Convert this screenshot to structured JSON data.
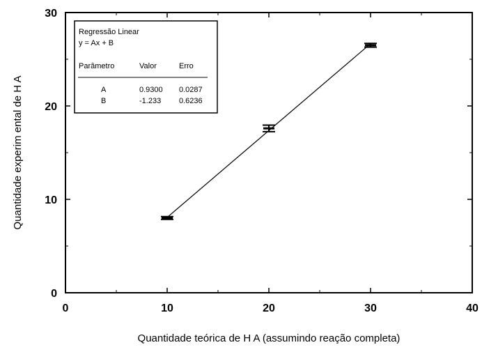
{
  "chart_data": {
    "type": "scatter",
    "xlabel": "Quantidade teórica de H A (assumindo reação completa)",
    "ylabel": "Quantidade experim ental de H A",
    "xlim": [
      0,
      40
    ],
    "ylim": [
      0,
      30
    ],
    "x_ticks": [
      0,
      10,
      20,
      30,
      40
    ],
    "y_ticks": [
      0,
      10,
      20,
      30
    ],
    "x_tick_labels": [
      "0",
      "10",
      "20",
      "30",
      "40"
    ],
    "y_tick_labels": [
      "0",
      "10",
      "20",
      "30"
    ],
    "grid": false,
    "series": [
      {
        "x": [
          10,
          20,
          30
        ],
        "y": [
          8.0,
          17.6,
          26.5
        ],
        "y_error": [
          0.15,
          0.35,
          0.2
        ],
        "fit": {
          "type": "linear",
          "slope": 0.93,
          "intercept": -1.233,
          "x_range": [
            10,
            30
          ]
        }
      }
    ],
    "legend": {
      "title": "Regressão Linear",
      "equation": "y = Ax + B",
      "headers": [
        "Parâmetro",
        "Valor",
        "Erro"
      ],
      "rows": [
        [
          "A",
          "0.9300",
          "0.0287"
        ],
        [
          "B",
          "-1.233",
          "0.6236"
        ]
      ],
      "placement": "top-left"
    }
  }
}
